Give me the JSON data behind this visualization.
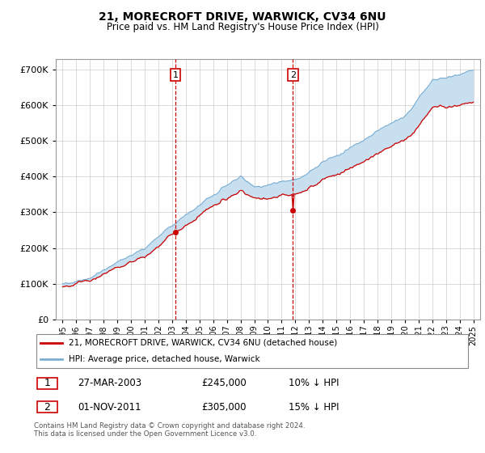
{
  "title": "21, MORECROFT DRIVE, WARWICK, CV34 6NU",
  "subtitle": "Price paid vs. HM Land Registry's House Price Index (HPI)",
  "legend_line1": "21, MORECROFT DRIVE, WARWICK, CV34 6NU (detached house)",
  "legend_line2": "HPI: Average price, detached house, Warwick",
  "transaction1_date": "27-MAR-2003",
  "transaction1_price": "£245,000",
  "transaction1_hpi": "10% ↓ HPI",
  "transaction1_year": 2003.23,
  "transaction1_value": 245000,
  "transaction2_date": "01-NOV-2011",
  "transaction2_price": "£305,000",
  "transaction2_hpi": "15% ↓ HPI",
  "transaction2_year": 2011.83,
  "transaction2_value": 305000,
  "footer": "Contains HM Land Registry data © Crown copyright and database right 2024.\nThis data is licensed under the Open Government Licence v3.0.",
  "red_line_color": "#cc0000",
  "blue_line_color": "#7aafd4",
  "fill_color": "#c8dff0",
  "vline_color": "#cc0000",
  "grid_color": "#cccccc",
  "ylim": [
    0,
    730000
  ],
  "xlim_start": 1994.5,
  "xlim_end": 2025.5
}
